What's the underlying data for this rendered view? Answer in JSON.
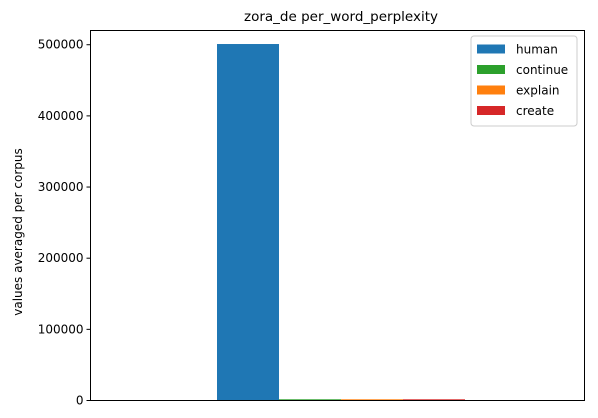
{
  "chart_data": {
    "type": "bar",
    "title": "zora_de per_word_perplexity",
    "xlabel": "",
    "ylabel": "values averaged per corpus",
    "ylim": [
      0,
      520000
    ],
    "yticks": [
      0,
      100000,
      200000,
      300000,
      400000,
      500000
    ],
    "ytick_labels": [
      "0",
      "100000",
      "200000",
      "300000",
      "400000",
      "500000"
    ],
    "grid": false,
    "legend_position": "top-right",
    "series": [
      {
        "name": "human",
        "value": 501000,
        "color": "#1f77b4"
      },
      {
        "name": "continue",
        "value": 900,
        "color": "#2ca02c"
      },
      {
        "name": "explain",
        "value": 700,
        "color": "#ff7f0e"
      },
      {
        "name": "create",
        "value": 800,
        "color": "#d62728"
      }
    ]
  }
}
